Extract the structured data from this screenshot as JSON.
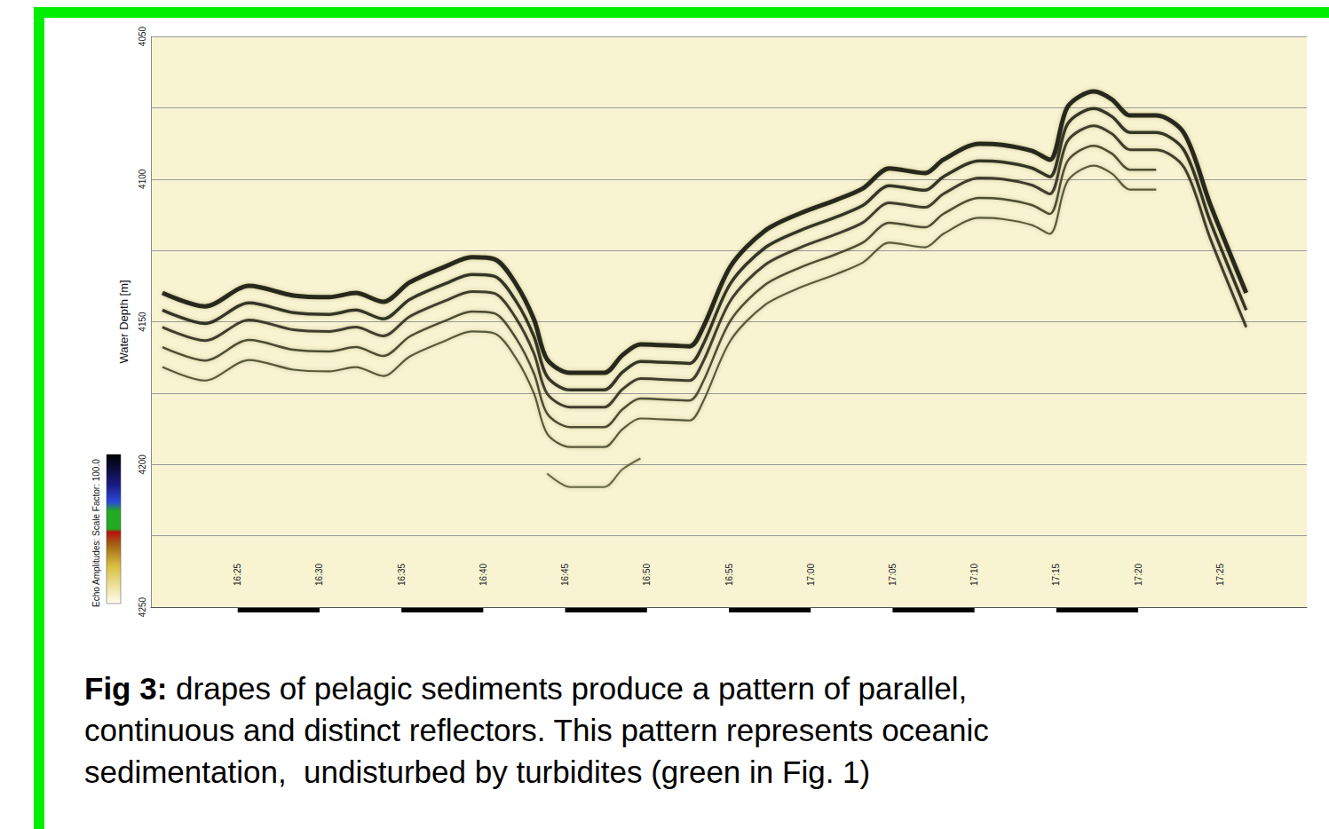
{
  "chart_data": {
    "type": "line",
    "ylabel": "Water Depth [m]",
    "colorbar": {
      "label": "Echo Amplitudes: Scale Factor: 100.0"
    },
    "xlim": [
      979.7,
      1050.3
    ],
    "xticks": [
      {
        "value": 985,
        "label": "16:25"
      },
      {
        "value": 990,
        "label": "16:30"
      },
      {
        "value": 995,
        "label": "16:35"
      },
      {
        "value": 1000,
        "label": "16:40"
      },
      {
        "value": 1005,
        "label": "16:45"
      },
      {
        "value": 1010,
        "label": "16:50"
      },
      {
        "value": 1015,
        "label": "16:55"
      },
      {
        "value": 1020,
        "label": "17:00"
      },
      {
        "value": 1025,
        "label": "17:05"
      },
      {
        "value": 1030,
        "label": "17:10"
      },
      {
        "value": 1035,
        "label": "17:15"
      },
      {
        "value": 1040,
        "label": "17:20"
      },
      {
        "value": 1045,
        "label": "17:25"
      }
    ],
    "ylim": [
      4050,
      4250
    ],
    "yticks": [
      4050,
      4100,
      4150,
      4200,
      4250
    ],
    "grid": true,
    "x": [
      980.4,
      983.0,
      985.7,
      988.4,
      990.6,
      992.2,
      993.9,
      995.5,
      997.7,
      999.3,
      1000.7,
      1002.0,
      1003.1,
      1003.9,
      1005.3,
      1007.4,
      1008.5,
      1009.6,
      1012.6,
      1013.4,
      1015.1,
      1017.2,
      1019.4,
      1021.6,
      1023.2,
      1024.8,
      1027.0,
      1028.1,
      1030.3,
      1031.7,
      1033.5,
      1034.6,
      1035.7,
      1037.3,
      1038.4,
      1039.5,
      1041.1,
      1042.8,
      1044.4,
      1046.6
    ],
    "series": [
      {
        "color": "#14140c",
        "values": [
          4139.9,
          4144.6,
          4137.4,
          4140.8,
          4141.4,
          4139.9,
          4143.0,
          4136.2,
          4130.6,
          4127.4,
          4128.1,
          4136.8,
          4149.2,
          4163.2,
          4167.9,
          4167.9,
          4161.7,
          4157.9,
          4158.6,
          4152.3,
          4130.6,
          4118.1,
          4111.9,
          4107.2,
          4103.2,
          4096.3,
          4097.9,
          4093.2,
          4087.6,
          4088.0,
          4090.1,
          4093.2,
          4074.6,
          4069.3,
          4072.1,
          4077.7,
          4077.7,
          4083.9,
          4108.8,
          4139.9
        ]
      },
      {
        "color": "#24241a",
        "values": [
          4145.9,
          4150.6,
          4143.4,
          4146.8,
          4147.4,
          4145.9,
          4149.0,
          4142.2,
          4136.6,
          4133.4,
          4134.1,
          4142.8,
          4155.2,
          4169.2,
          4173.9,
          4173.9,
          4167.7,
          4163.9,
          4164.6,
          4158.3,
          4136.6,
          4124.1,
          4117.9,
          4113.2,
          4109.2,
          4102.3,
          4103.9,
          4099.2,
          4093.6,
          4094.0,
          4096.1,
          4099.2,
          4080.6,
          4075.3,
          4078.1,
          4083.7,
          4083.7,
          4089.9,
          4114.8,
          4145.9
        ]
      },
      {
        "color": "#2e2e20",
        "values": [
          4151.9,
          4156.6,
          4149.4,
          4152.8,
          4153.4,
          4151.9,
          4155.0,
          4148.2,
          4142.6,
          4139.4,
          4140.1,
          4148.8,
          4161.2,
          4175.2,
          4179.9,
          4179.9,
          4173.7,
          4169.9,
          4170.6,
          4164.3,
          4142.6,
          4130.1,
          4123.9,
          4119.2,
          4115.2,
          4108.3,
          4109.9,
          4105.2,
          4099.6,
          4100.0,
          4102.1,
          4105.2,
          4086.6,
          4081.3,
          4084.1,
          4089.7,
          4089.7,
          4095.9,
          4120.8,
          4151.9
        ]
      },
      {
        "color": "#3c3c26",
        "values": [
          4158.9,
          4163.6,
          4156.4,
          4159.8,
          4160.4,
          4158.9,
          4162.0,
          4155.2,
          4149.6,
          4146.4,
          4147.1,
          4155.8,
          4168.2,
          4182.2,
          4186.9,
          4186.9,
          4180.7,
          4176.9,
          4177.6,
          4171.3,
          4149.6,
          4137.1,
          4130.9,
          4126.2,
          4122.2,
          4115.3,
          4116.9,
          4112.2,
          4106.6,
          4107.0,
          4109.1,
          4112.2,
          4093.6,
          4088.3,
          4091.1,
          4096.7,
          4096.7,
          null,
          null,
          null
        ]
      },
      {
        "color": "#4a4a2e",
        "values": [
          4165.9,
          4170.6,
          4163.4,
          4166.8,
          4167.4,
          4165.9,
          4169.0,
          4162.2,
          4156.6,
          4153.4,
          4154.1,
          4162.8,
          4175.2,
          4189.2,
          4193.9,
          4193.9,
          4187.7,
          4183.9,
          4184.6,
          4178.3,
          4156.6,
          4144.1,
          4137.9,
          4133.2,
          4129.2,
          4122.3,
          4123.9,
          4119.2,
          4113.6,
          4114.0,
          4116.1,
          4119.2,
          4100.6,
          4095.3,
          4098.1,
          4103.7,
          4103.7,
          null,
          null,
          null
        ]
      },
      {
        "color": "#5a5a36",
        "values": [
          null,
          null,
          null,
          null,
          null,
          null,
          null,
          null,
          null,
          null,
          null,
          null,
          null,
          4203.2,
          4207.9,
          4207.9,
          4201.7,
          4197.9,
          null,
          null,
          null,
          null,
          null,
          null,
          null,
          null,
          null,
          null,
          null,
          null,
          null,
          null,
          null,
          null,
          null,
          null,
          null,
          null,
          null,
          null
        ]
      }
    ]
  },
  "caption": {
    "label": "Fig 3:",
    "lines": [
      "drapes of pelagic sediments produce a pattern of parallel,",
      "continuous and distinct reflectors. This pattern represents oceanic",
      "sedimentation,  undisturbed by turbidites (green in Fig. 1)"
    ]
  }
}
